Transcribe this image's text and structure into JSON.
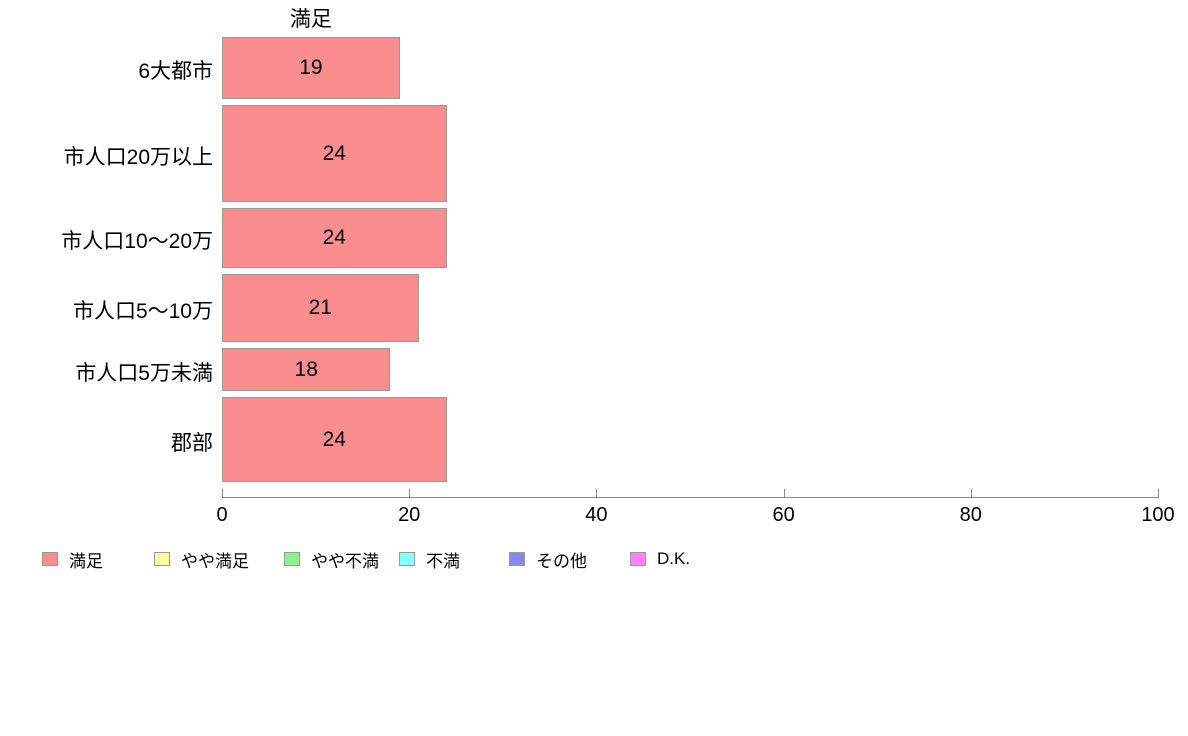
{
  "page": {
    "background_color": "#FFFFFF"
  },
  "chart_data": {
    "type": "bar",
    "orientation": "horizontal",
    "title": "満足",
    "categories": [
      "6大都市",
      "市人口20万以上",
      "市人口10〜20万",
      "市人口5〜10万",
      "市人口5万未満",
      "郡部"
    ],
    "values": [
      19,
      24,
      24,
      21,
      18,
      24
    ],
    "xlabel": "",
    "ylabel": "",
    "xlim": [
      0,
      100
    ],
    "x_ticks": [
      0,
      20,
      40,
      60,
      80,
      100
    ],
    "grid": false,
    "data_labels_shown": true,
    "series_color": "#FA8E8E",
    "bar_border_color": "#999999",
    "axis_color": "#888888",
    "text_color": "#000000",
    "bar_relative_heights": [
      62,
      97,
      60,
      68,
      43,
      85
    ],
    "legend_position": "bottom",
    "legend": [
      {
        "label": "満足",
        "color": "#FA8E8E"
      },
      {
        "label": "やや満足",
        "color": "#FAFA9E"
      },
      {
        "label": "やや不満",
        "color": "#90EE90"
      },
      {
        "label": "不満",
        "color": "#85FFFF"
      },
      {
        "label": "その他",
        "color": "#8888EE"
      },
      {
        "label": "D.K.",
        "color": "#FA85FA"
      }
    ]
  }
}
